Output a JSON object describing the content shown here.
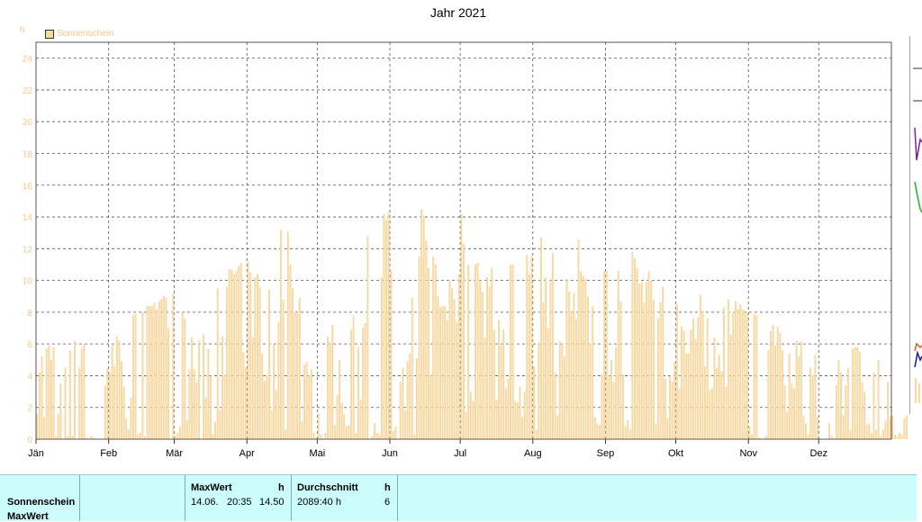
{
  "title": "Jahr 2021",
  "unit_label": "h",
  "legend": {
    "label": "Sonnenschein"
  },
  "colors": {
    "bar": "#f7d9a3",
    "text_axis": "#f3c88a",
    "grid": "#555555",
    "table_bg": "#ccfdfd"
  },
  "chart_data": {
    "type": "bar",
    "title": "Jahr 2021",
    "ylabel": "h",
    "ylim": [
      0,
      25
    ],
    "yticks": [
      0,
      2,
      4,
      6,
      8,
      10,
      12,
      14,
      16,
      18,
      20,
      22,
      24
    ],
    "grid": true,
    "legend_position": "top-left",
    "month_labels": [
      "Jän",
      "Feb",
      "Mär",
      "Apr",
      "Mai",
      "Jun",
      "Jul",
      "Aug",
      "Sep",
      "Okt",
      "Nov",
      "Dez"
    ],
    "series": [
      {
        "name": "Sonnenschein",
        "unit": "h",
        "values": [
          1.6,
          4.2,
          5.2,
          1.4,
          5.7,
          5.9,
          5.0,
          5.8,
          0.2,
          1.6,
          3.5,
          0.0,
          4.5,
          0.2,
          5.6,
          0.2,
          6.2,
          0.0,
          4.5,
          5.7,
          6.0,
          0.1,
          0.0,
          0.2,
          0.1,
          0.0,
          0.0,
          0.0,
          0.0,
          3.4,
          4.5,
          4.2,
          6.0,
          4.6,
          6.5,
          6.2,
          4.9,
          3.3,
          1.3,
          0.6,
          2.6,
          7.8,
          7.9,
          0.3,
          0.4,
          8.0,
          0.2,
          8.4,
          8.4,
          8.4,
          8.6,
          8.2,
          8.7,
          8.8,
          9.0,
          8.9,
          7.0,
          0.0,
          9.2,
          0.2,
          0.4,
          0.8,
          8.0,
          7.6,
          1.2,
          4.4,
          6.4,
          4.4,
          3.6,
          6.2,
          0.0,
          6.6,
          2.6,
          5.7,
          4.0,
          0.3,
          1.1,
          9.5,
          1.8,
          6.5,
          4.1,
          9.6,
          10.7,
          10.7,
          10.4,
          10.6,
          10.9,
          11.1,
          5.5,
          4.5,
          11.2,
          10.5,
          6.4,
          10.2,
          10.4,
          9.6,
          5.4,
          3.7,
          4.1,
          9.4,
          1.8,
          6.0,
          3.1,
          7.4,
          13.2,
          8.8,
          0.6,
          13.1,
          11.0,
          9.5,
          8.0,
          7.9,
          8.9,
          1.1,
          4.7,
          4.9,
          4.0,
          4.4,
          0.4,
          0.1,
          1.6,
          0.3,
          0.0,
          0.4,
          6.5,
          6.1,
          7.2,
          0.9,
          2.8,
          5.0,
          2.3,
          1.6,
          0.8,
          0.9,
          6.9,
          7.8,
          0.4,
          5.8,
          2.5,
          7.0,
          7.3,
          12.8,
          0.0,
          0.2,
          1.0,
          0.4,
          0.3,
          10.2,
          14.2,
          13.8,
          14.3,
          10.6,
          0.5,
          0.8,
          0.0,
          3.6,
          4.5,
          1.8,
          4.9,
          5.4,
          8.9,
          0.3,
          5.1,
          11.5,
          14.5,
          14.1,
          12.5,
          10.8,
          4.1,
          11.5,
          11.0,
          9.0,
          8.3,
          8.4,
          8.4,
          7.5,
          10.0,
          9.5,
          8.8,
          7.4,
          10.4,
          14.2,
          12.3,
          1.7,
          11.0,
          3.0,
          2.4,
          11.0,
          11.1,
          10.0,
          9.3,
          6.4,
          10.2,
          9.6,
          10.8,
          6.9,
          2.5,
          7.5,
          5.9,
          6.9,
          3.2,
          3.8,
          11.0,
          11.0,
          2.4,
          2.3,
          3.3,
          1.4,
          3.0,
          11.6,
          10.4,
          11.5,
          4.6,
          0.6,
          6.1,
          12.7,
          8.6,
          10.2,
          7.0,
          10.0,
          11.7,
          4.2,
          1.5,
          6.2,
          6.0,
          5.2,
          10.1,
          9.3,
          8.0,
          9.2,
          7.6,
          12.6,
          10.6,
          10.3,
          10.1,
          9.0,
          6.0,
          8.4,
          1.4,
          1.0,
          0.9,
          4.1,
          10.6,
          10.6,
          4.0,
          5.0,
          3.6,
          5.8,
          10.6,
          8.7,
          4.1,
          0.8,
          1.2,
          0.6,
          11.8,
          11.4,
          10.8,
          9.8,
          9.9,
          8.6,
          9.9,
          10.6,
          10.0,
          8.8,
          1.0,
          7.6,
          8.6,
          9.6,
          3.8,
          1.3,
          4.0,
          3.6,
          4.9,
          8.5,
          3.2,
          7.1,
          6.8,
          5.4,
          5.4,
          6.9,
          7.6,
          6.3,
          7.7,
          9.1,
          8.1,
          4.6,
          7.6,
          3.1,
          3.2,
          6.4,
          4.5,
          5.3,
          4.3,
          8.3,
          3.3,
          8.8,
          6.6,
          8.0,
          8.7,
          8.2,
          8.5,
          8.2,
          8.0,
          8.0,
          0.8,
          0.3,
          7.9,
          7.8,
          0.1,
          0.0,
          0.0,
          0.2,
          5.6,
          6.8,
          7.2,
          5.9,
          7.1,
          6.7,
          5.6,
          3.4,
          1.7,
          5.4,
          3.5,
          3.2,
          6.2,
          5.2,
          6.2,
          1.5,
          1.0,
          0.3,
          4.5,
          4.0,
          5.3,
          1.4,
          0.0,
          0.0,
          0.0,
          0.0,
          1.0,
          0.2,
          0.0,
          3.4,
          5.0,
          4.2,
          1.5,
          3.4,
          4.5,
          0.6,
          5.7,
          5.8,
          5.8,
          5.5,
          3.6,
          3.0,
          0.9,
          1.0,
          0.4,
          4.2,
          0.6,
          5.0,
          0.2,
          0.6,
          1.2,
          3.6,
          1.4,
          1.5,
          0.3,
          0.2,
          0.4,
          0.3,
          1.3,
          1.5
        ]
      }
    ]
  },
  "table": {
    "row_label_1": "Sonnenschein",
    "row_label_2": "MaxWert",
    "col1_header": "MaxWert",
    "col1_unit": "h",
    "col1_date": "14.06.",
    "col1_time": "20:35",
    "col1_value": "14.50",
    "col2_header": "Durchschnitt",
    "col2_unit": "h",
    "col2_value": "2089:40 h",
    "col2_avg": "6"
  }
}
